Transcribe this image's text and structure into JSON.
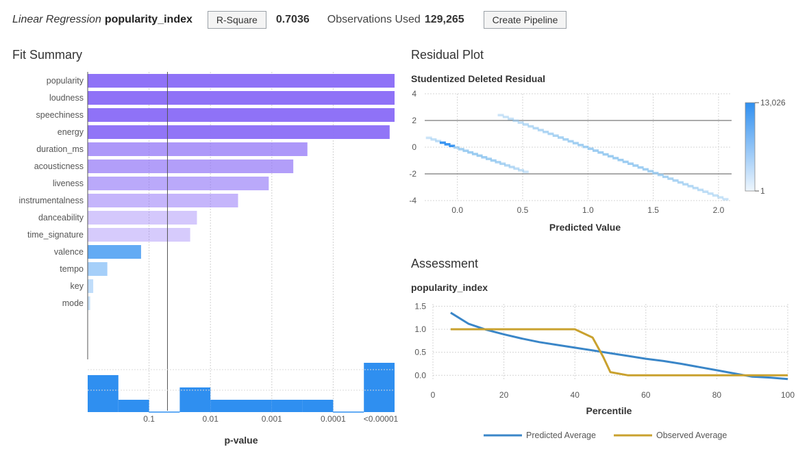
{
  "header": {
    "model_type": "Linear Regression",
    "target": "popularity_index",
    "stat_button": "R-Square",
    "stat_value": "0.7036",
    "obs_label": "Observations Used",
    "obs_value": "129,265",
    "pipeline_button": "Create Pipeline"
  },
  "panels": {
    "fit_summary_title": "Fit Summary",
    "residual_title": "Residual Plot",
    "assessment_title": "Assessment"
  },
  "colors": {
    "accent": "#2f8ff0",
    "purple": "#8f72f7",
    "gold": "#c9a12e"
  },
  "chart_data": [
    {
      "type": "bar",
      "orientation": "horizontal",
      "title": "Fit Summary",
      "xlabel": "p-value",
      "x_tick_labels": [
        "0.1",
        "0.01",
        "0.001",
        "0.0001",
        "<0.00001"
      ],
      "categories": [
        "popularity",
        "loudness",
        "speechiness",
        "energy",
        "duration_ms",
        "acousticness",
        "liveness",
        "instrumentalness",
        "danceability",
        "time_signature",
        "valence",
        "tempo",
        "key",
        "mode"
      ],
      "values": [
        5.0,
        5.0,
        5.0,
        4.92,
        3.58,
        3.35,
        2.95,
        2.45,
        1.78,
        1.67,
        0.87,
        0.32,
        0.09,
        0.04
      ],
      "value_scale": "-log10(p-value)",
      "reference_line_at": 1.3,
      "histogram": {
        "bins": 10,
        "heights": [
          1.5,
          0.5,
          0,
          1.0,
          0.5,
          0.5,
          0.5,
          0.5,
          0,
          2.0
        ]
      }
    },
    {
      "type": "heatmap",
      "title": "Studentized Deleted Residual",
      "xlabel": "Predicted Value",
      "ylabel": "Studentized Deleted Residual",
      "x_ticks": [
        "0.0",
        "0.5",
        "1.0",
        "1.5",
        "2.0"
      ],
      "y_ticks": [
        "4",
        "2",
        "0",
        "-2",
        "-4"
      ],
      "xlim": [
        -0.25,
        2.1
      ],
      "ylim": [
        -4,
        4
      ],
      "reference_lines_y": [
        2,
        -2
      ],
      "color_range": {
        "min_label": "1",
        "max_label": "13,026"
      },
      "bands": [
        {
          "x": [
            -0.22,
            0.52
          ],
          "y": [
            0.7,
            -1.85
          ]
        },
        {
          "x": [
            0.33,
            2.05
          ],
          "y": [
            2.4,
            -3.9
          ]
        }
      ]
    },
    {
      "type": "line",
      "title": "popularity_index",
      "xlabel": "Percentile",
      "x_ticks": [
        "0",
        "20",
        "40",
        "60",
        "80",
        "100"
      ],
      "y_ticks": [
        "1.5",
        "1.0",
        "0.5",
        "0.0"
      ],
      "xlim": [
        0,
        100
      ],
      "ylim": [
        -0.1,
        1.55
      ],
      "legend_position": "bottom",
      "series": [
        {
          "name": "Predicted Average",
          "color": "#3a86c8",
          "x": [
            5,
            10,
            15,
            20,
            25,
            30,
            35,
            40,
            45,
            50,
            55,
            60,
            65,
            70,
            75,
            80,
            85,
            90,
            95,
            100
          ],
          "y": [
            1.36,
            1.12,
            0.99,
            0.89,
            0.8,
            0.72,
            0.66,
            0.6,
            0.54,
            0.48,
            0.42,
            0.36,
            0.31,
            0.25,
            0.18,
            0.11,
            0.04,
            -0.03,
            -0.05,
            -0.08
          ]
        },
        {
          "name": "Observed Average",
          "color": "#c9a12e",
          "x": [
            5,
            10,
            15,
            20,
            25,
            30,
            35,
            40,
            45,
            48,
            50,
            55,
            60,
            65,
            70,
            75,
            80,
            85,
            90,
            95,
            100
          ],
          "y": [
            1.0,
            1.0,
            1.0,
            1.0,
            1.0,
            1.0,
            1.0,
            1.0,
            0.82,
            0.4,
            0.07,
            0.0,
            0.0,
            0.0,
            0.0,
            0.0,
            0.0,
            0.0,
            0.0,
            0.0,
            0.0
          ]
        }
      ]
    }
  ]
}
